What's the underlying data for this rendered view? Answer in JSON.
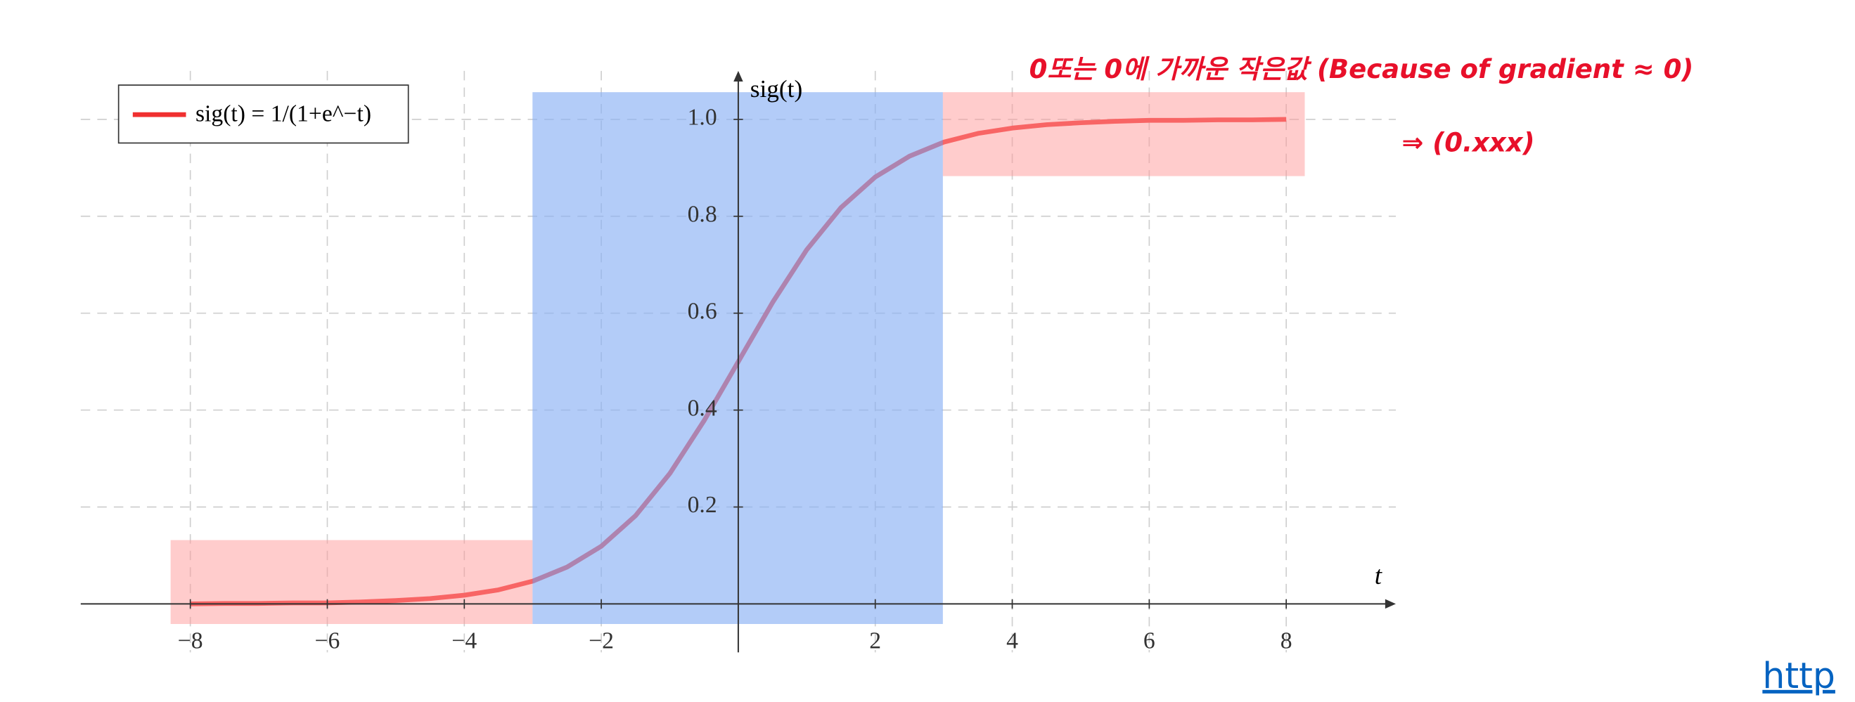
{
  "chart_data": {
    "type": "line",
    "legend": "upper left",
    "grid": true,
    "x": [
      -8,
      -7.5,
      -7,
      -6.5,
      -6,
      -5.5,
      -5,
      -4.5,
      -4,
      -3.5,
      -3,
      -2.5,
      -2,
      -1.5,
      -1,
      -0.5,
      0,
      0.5,
      1,
      1.5,
      2,
      2.5,
      3,
      3.5,
      4,
      4.5,
      5,
      5.5,
      6,
      6.5,
      7,
      7.5,
      8
    ],
    "series": [
      {
        "name": "sig(t) = 1/(1+e^−t)",
        "color": "#f03030",
        "values": [
          0.0,
          0.001,
          0.001,
          0.002,
          0.002,
          0.004,
          0.007,
          0.011,
          0.018,
          0.029,
          0.047,
          0.076,
          0.119,
          0.182,
          0.269,
          0.378,
          0.5,
          0.622,
          0.731,
          0.818,
          0.881,
          0.924,
          0.953,
          0.971,
          0.982,
          0.989,
          0.993,
          0.996,
          0.998,
          0.998,
          0.999,
          0.999,
          1.0
        ]
      }
    ],
    "xlabel": "t",
    "ylabel": "sig(t)",
    "xlim": [
      -9.6,
      9.6
    ],
    "ylim": [
      -0.1,
      1.1
    ],
    "xticks": [
      {
        "value": -8,
        "label": "−8"
      },
      {
        "value": -6,
        "label": "−6"
      },
      {
        "value": -4,
        "label": "−4"
      },
      {
        "value": -2,
        "label": "−2"
      },
      2,
      4,
      6,
      8
    ],
    "yticks": [
      0.2,
      0.4,
      0.6,
      0.8,
      {
        "value": 1,
        "label": "1.0"
      }
    ],
    "annotations": [
      "0또는 0에 가까운 작은값 (Because of gradient ≈ 0)",
      "⇒ (0.xxx)"
    ],
    "link": "http"
  }
}
